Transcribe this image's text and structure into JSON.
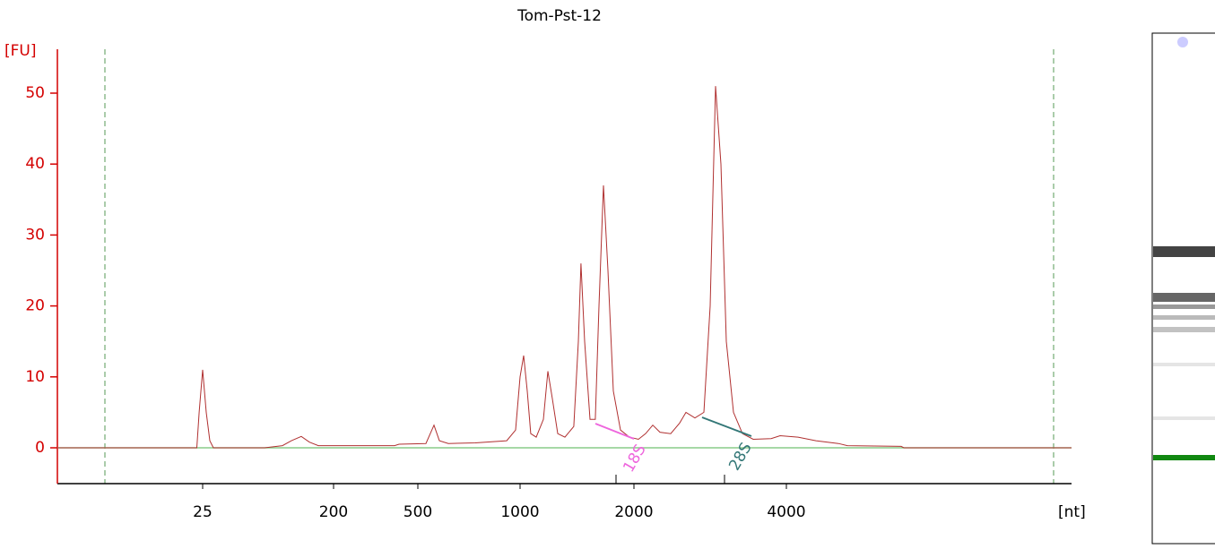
{
  "chart_data": {
    "type": "line",
    "title": "Tom-Pst-12",
    "y_label": "[FU]",
    "x_label": "[nt]",
    "xlim": [
      0,
      7700
    ],
    "xticks": [
      25,
      200,
      500,
      1000,
      2000,
      4000
    ],
    "ylim": [
      -5,
      56
    ],
    "yticks": [
      0,
      10,
      20,
      30,
      40,
      50
    ],
    "axis_color": "#d40000",
    "series": [
      {
        "color": "#b03030",
        "x": [
          0,
          24,
          24.4,
          25,
          29.8,
          34.6,
          39.4,
          107.7,
          131.7,
          143.7,
          156.9,
          167.7,
          179.6,
          416.9,
          432.9,
          539.5,
          579,
          605.4,
          649.3,
          781,
          934.6,
          978,
          1000,
          1031.5,
          1063,
          1094,
          1142,
          1205,
          1244,
          1283,
          1331,
          1394,
          1472,
          1512,
          1535,
          1567,
          1614,
          1661,
          1693,
          1732,
          1772,
          1819,
          1882,
          1961,
          2059,
          2153,
          2247,
          2341,
          2482,
          2600,
          2682,
          2800,
          2918,
          3000,
          3071,
          3141,
          3212,
          3306,
          3424,
          3565,
          3800,
          3918,
          4151,
          4384,
          4675,
          4791,
          5489,
          5524,
          7700
        ],
        "values": [
          0,
          0,
          5,
          11,
          5,
          1,
          0,
          0,
          0.3,
          1,
          1.6,
          0.8,
          0.3,
          0.3,
          0.5,
          0.6,
          3.2,
          1,
          0.6,
          0.7,
          1,
          2.5,
          10,
          13,
          8,
          2,
          1.5,
          4,
          10.8,
          7,
          2,
          1.5,
          3,
          15,
          26,
          15,
          4,
          4,
          20,
          37,
          25,
          8,
          2.5,
          1.5,
          1.2,
          2,
          3.2,
          2.2,
          2,
          3.5,
          5,
          4.2,
          5,
          20,
          51,
          40,
          15,
          5,
          2,
          1.2,
          1.3,
          1.7,
          1.5,
          1,
          0.6,
          0.3,
          0.2,
          0,
          0
        ]
      }
    ],
    "annotations": [
      {
        "text": "18S",
        "color": "#ee66dd"
      },
      {
        "text": "28S",
        "color": "#337777"
      }
    ]
  }
}
